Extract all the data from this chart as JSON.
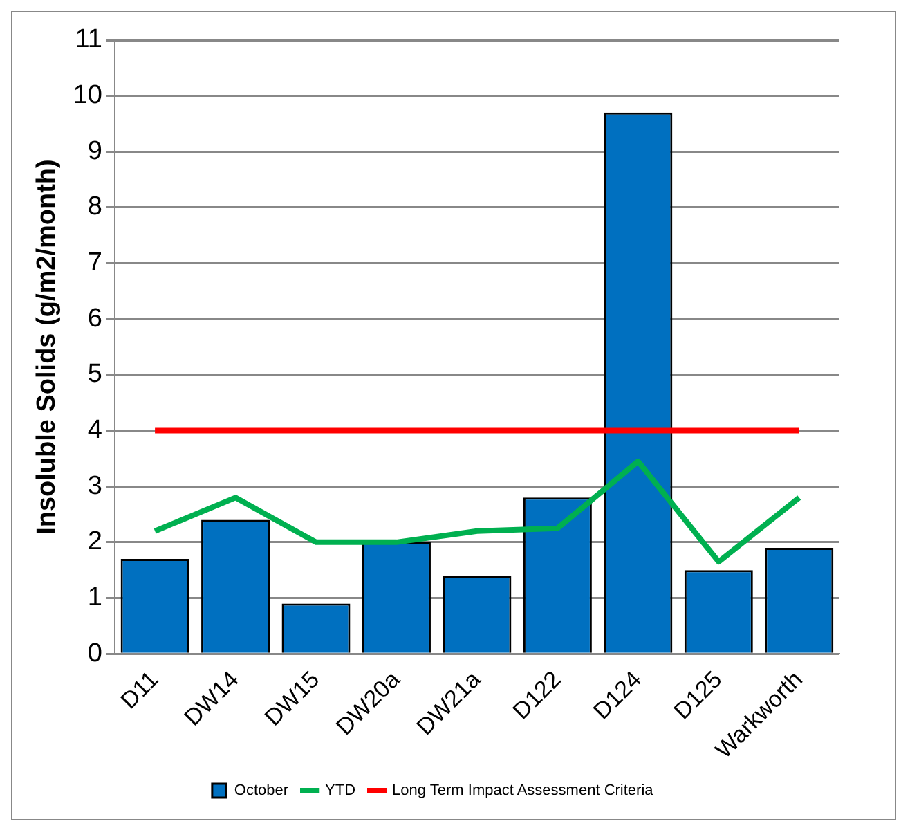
{
  "chart_data": {
    "type": "bar",
    "ylabel": "Insoluble Solids (g/m2/month)",
    "categories": [
      "D11",
      "DW14",
      "DW15",
      "DW20a",
      "DW21a",
      "D122",
      "D124",
      "D125",
      "Warkworth"
    ],
    "series": [
      {
        "name": "October",
        "color": "#0070c0",
        "values": [
          1.7,
          2.4,
          0.9,
          2.0,
          1.4,
          2.8,
          9.7,
          1.5,
          1.9
        ]
      },
      {
        "name": "YTD",
        "type": "line",
        "color": "#00b050",
        "values": [
          2.2,
          2.8,
          2.0,
          2.0,
          2.2,
          2.25,
          3.45,
          1.65,
          2.8
        ]
      },
      {
        "name": "Long Term Impact Assessment Criteria",
        "type": "line",
        "color": "#ff0000",
        "values": [
          4,
          4,
          4,
          4,
          4,
          4,
          4,
          4,
          4
        ]
      }
    ],
    "ylim": [
      0,
      11
    ],
    "yticks": [
      0,
      1,
      2,
      3,
      4,
      5,
      6,
      7,
      8,
      9,
      10,
      11
    ],
    "grid": "y",
    "legend": "bottom",
    "marker": "none"
  }
}
